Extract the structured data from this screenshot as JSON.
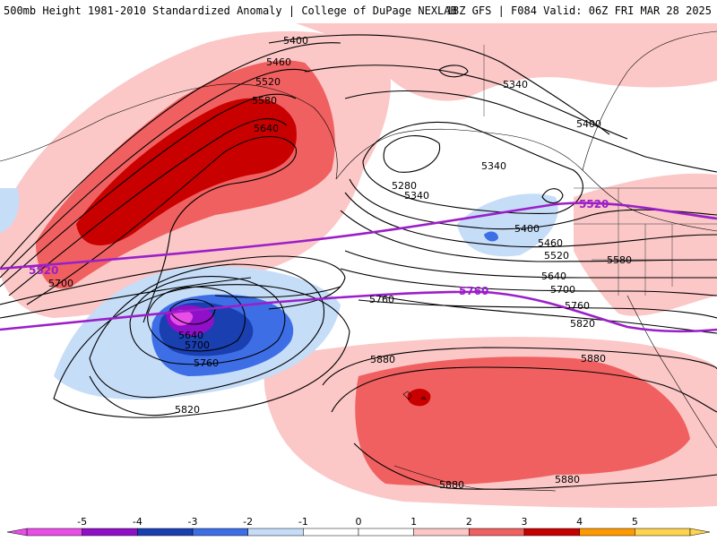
{
  "header": {
    "left_title": "500mb Height 1981-2010 Standardized Anomaly | College of DuPage NEXLAB",
    "right_title": "18Z GFS | F084 Valid: 06Z FRI MAR 28 2025"
  },
  "contour_labels": {
    "c5400_a": "5400",
    "c5460_a": "5460",
    "c5520_a": "5520",
    "c5580_a": "5580",
    "c5640_a": "5640",
    "c5340_a": "5340",
    "c5400_b": "5400",
    "c5340_b": "5340",
    "c5280": "5280",
    "c5340_c": "5340",
    "c5400_c": "5400",
    "c5460_b": "5460",
    "c5520_b": "5520",
    "c5580_b": "5580",
    "c5640_b": "5640",
    "c5700_a": "5700",
    "c5760_a": "5760",
    "c5820_a": "5820",
    "c5700_b": "5700",
    "c5640_c": "5640",
    "c5700_c": "5700",
    "c5760_b": "5760",
    "c5820_b": "5820",
    "c5880_a": "5880",
    "c5880_b": "5880",
    "c5880_c": "5880",
    "c5880_d": "5880",
    "c5760_c": "5760"
  },
  "highlight_labels": {
    "p5520_west": "5520",
    "p5520_east": "5520",
    "p5760": "5760"
  },
  "colorbar": {
    "ticks": [
      "-5",
      "-4",
      "-3",
      "-2",
      "-1",
      "0",
      "1",
      "2",
      "3",
      "4",
      "5"
    ],
    "colors": [
      "#e84de8",
      "#8f10c8",
      "#1a3fb0",
      "#3d6ee6",
      "#c6ddf8",
      "#ffffff",
      "#ffffff",
      "#fbc7c7",
      "#f06060",
      "#c80000",
      "#ff9900",
      "#ffd34d"
    ]
  }
}
